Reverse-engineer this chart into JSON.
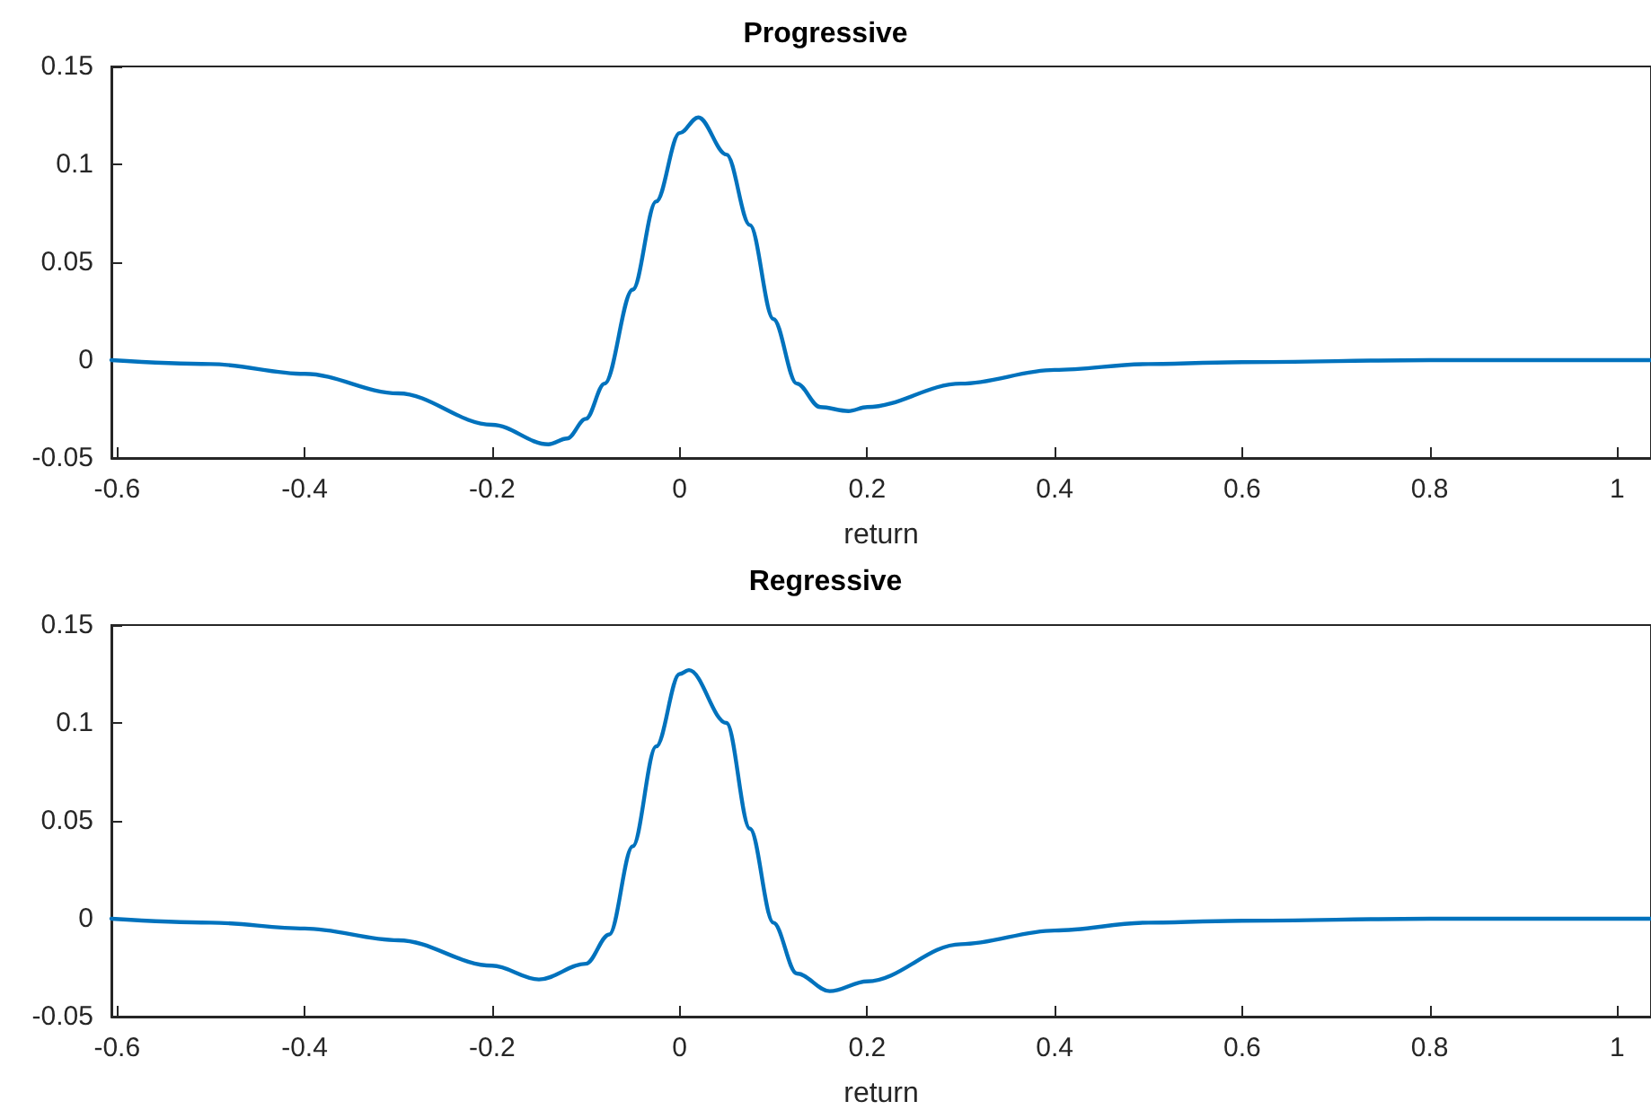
{
  "chart_data": [
    {
      "type": "line",
      "title": "Progressive",
      "xlabel": "return",
      "xlim": [
        -0.606,
        1.036
      ],
      "ylim": [
        -0.05,
        0.15
      ],
      "xticks": [
        -0.6,
        -0.4,
        -0.2,
        0,
        0.2,
        0.4,
        0.6,
        0.8,
        1
      ],
      "yticks": [
        -0.05,
        0,
        0.05,
        0.1,
        0.15
      ],
      "grid": false,
      "marker": "none",
      "line_style": "solid",
      "series": [
        {
          "color": "#0072bd",
          "x": [
            -0.606,
            -0.5,
            -0.4,
            -0.3,
            -0.2,
            -0.14,
            -0.12,
            -0.1,
            -0.08,
            -0.05,
            -0.025,
            0,
            0.02,
            0.05,
            0.075,
            0.1,
            0.125,
            0.15,
            0.18,
            0.2,
            0.3,
            0.4,
            0.5,
            0.6,
            0.8,
            1.036
          ],
          "values": [
            0,
            -0.002,
            -0.007,
            -0.017,
            -0.033,
            -0.043,
            -0.04,
            -0.03,
            -0.012,
            0.036,
            0.081,
            0.116,
            0.124,
            0.105,
            0.069,
            0.021,
            -0.012,
            -0.024,
            -0.026,
            -0.024,
            -0.012,
            -0.005,
            -0.002,
            -0.001,
            0,
            0
          ]
        }
      ]
    },
    {
      "type": "line",
      "title": "Regressive",
      "xlabel": "return",
      "xlim": [
        -0.606,
        1.036
      ],
      "ylim": [
        -0.05,
        0.15
      ],
      "xticks": [
        -0.6,
        -0.4,
        -0.2,
        0,
        0.2,
        0.4,
        0.6,
        0.8,
        1
      ],
      "yticks": [
        -0.05,
        0,
        0.05,
        0.1,
        0.15
      ],
      "grid": false,
      "marker": "none",
      "line_style": "solid",
      "series": [
        {
          "color": "#0072bd",
          "x": [
            -0.606,
            -0.5,
            -0.4,
            -0.3,
            -0.2,
            -0.15,
            -0.1,
            -0.075,
            -0.05,
            -0.025,
            0,
            0.01,
            0.05,
            0.075,
            0.1,
            0.125,
            0.16,
            0.2,
            0.3,
            0.4,
            0.5,
            0.6,
            0.8,
            1.036
          ],
          "values": [
            0,
            -0.002,
            -0.005,
            -0.011,
            -0.024,
            -0.031,
            -0.023,
            -0.008,
            0.037,
            0.088,
            0.125,
            0.127,
            0.1,
            0.046,
            -0.002,
            -0.028,
            -0.037,
            -0.032,
            -0.013,
            -0.006,
            -0.002,
            -0.001,
            0,
            0
          ]
        }
      ]
    }
  ]
}
